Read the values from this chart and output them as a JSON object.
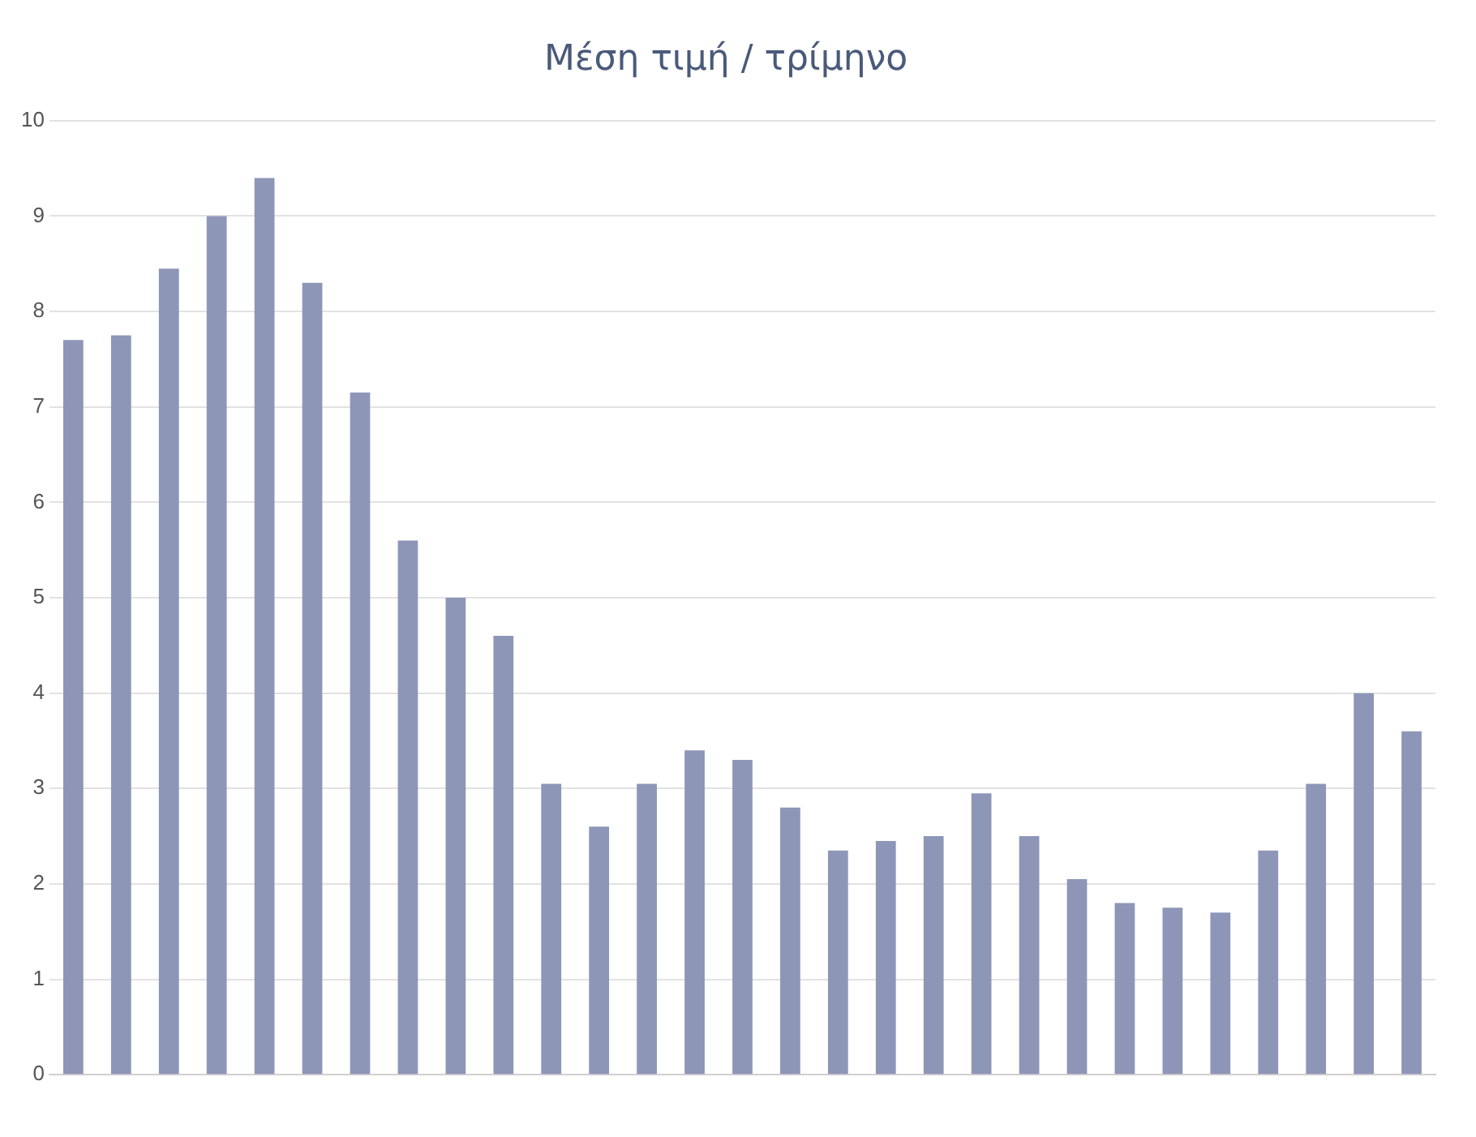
{
  "chart_data": {
    "type": "bar",
    "title": "Μέση τιμή / τρίμηνο",
    "categories": [
      null,
      null,
      null,
      null,
      null,
      null,
      null,
      null,
      null,
      null,
      null,
      null,
      null,
      null,
      null,
      null,
      null,
      null,
      null,
      null,
      null,
      null,
      null,
      null,
      null,
      null,
      null,
      null,
      null
    ],
    "values": [
      7.7,
      7.75,
      8.45,
      9.0,
      9.4,
      8.3,
      7.15,
      5.6,
      5.0,
      4.6,
      3.05,
      2.6,
      3.05,
      3.4,
      3.3,
      2.8,
      2.35,
      2.45,
      2.5,
      2.95,
      2.5,
      2.05,
      1.8,
      1.75,
      1.7,
      2.35,
      3.05,
      4.0,
      3.6
    ],
    "color": "#8e96b8",
    "ylim": [
      0,
      10
    ],
    "yticks": [
      0,
      1,
      2,
      3,
      4,
      5,
      6,
      7,
      8,
      9,
      10
    ],
    "grid": "y",
    "legend": false
  }
}
